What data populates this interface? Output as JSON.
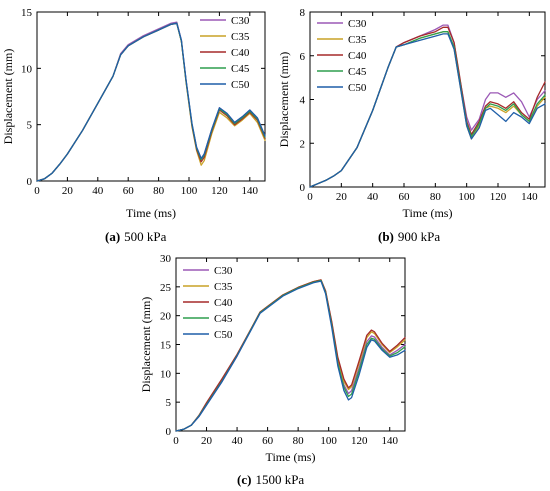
{
  "chart_data": [
    {
      "id": "a",
      "type": "line",
      "caption_tag": "(a)",
      "caption_text": "500 kPa",
      "xlabel": "Time (ms)",
      "ylabel": "Displacement (mm)",
      "xlim": [
        0,
        150
      ],
      "ylim": [
        0,
        15
      ],
      "xticks": [
        0,
        20,
        40,
        60,
        80,
        100,
        120,
        140
      ],
      "yticks": [
        0,
        5,
        10,
        15
      ],
      "legend": "top-right",
      "series": [
        {
          "name": "C30",
          "color": "#9b59b6",
          "x": [
            0,
            5,
            10,
            15,
            20,
            30,
            40,
            50,
            55,
            60,
            70,
            80,
            88,
            92,
            95,
            98,
            102,
            105,
            108,
            110,
            115,
            120,
            125,
            130,
            135,
            140,
            145,
            150
          ],
          "y": [
            0,
            0.2,
            0.7,
            1.5,
            2.4,
            4.5,
            6.9,
            9.3,
            11.3,
            12.1,
            12.9,
            13.5,
            14.0,
            14.1,
            12.5,
            9.0,
            5.0,
            3.0,
            2.0,
            2.4,
            4.6,
            6.5,
            6.0,
            5.2,
            5.7,
            6.3,
            5.6,
            4.0
          ]
        },
        {
          "name": "C35",
          "color": "#c9a227",
          "x": [
            0,
            5,
            10,
            15,
            20,
            30,
            40,
            50,
            55,
            60,
            70,
            80,
            88,
            92,
            95,
            98,
            102,
            105,
            108,
            110,
            115,
            120,
            125,
            130,
            135,
            140,
            145,
            150
          ],
          "y": [
            0,
            0.2,
            0.7,
            1.5,
            2.4,
            4.5,
            6.9,
            9.3,
            11.2,
            12.0,
            12.8,
            13.4,
            13.9,
            14.0,
            12.4,
            8.8,
            4.8,
            2.7,
            1.4,
            1.8,
            4.2,
            6.1,
            5.6,
            4.9,
            5.4,
            6.0,
            5.2,
            3.6
          ]
        },
        {
          "name": "C40",
          "color": "#a52a2a",
          "x": [
            0,
            5,
            10,
            15,
            20,
            30,
            40,
            50,
            55,
            60,
            70,
            80,
            88,
            92,
            95,
            98,
            102,
            105,
            108,
            110,
            115,
            120,
            125,
            130,
            135,
            140,
            145,
            150
          ],
          "y": [
            0,
            0.2,
            0.7,
            1.5,
            2.4,
            4.5,
            6.9,
            9.3,
            11.2,
            12.0,
            12.8,
            13.4,
            13.9,
            14.0,
            12.4,
            8.9,
            4.9,
            2.8,
            1.7,
            2.1,
            4.4,
            6.3,
            5.8,
            5.0,
            5.5,
            6.1,
            5.4,
            3.8
          ]
        },
        {
          "name": "C45",
          "color": "#2e9e4f",
          "x": [
            0,
            5,
            10,
            15,
            20,
            30,
            40,
            50,
            55,
            60,
            70,
            80,
            88,
            92,
            95,
            98,
            102,
            105,
            108,
            110,
            115,
            120,
            125,
            130,
            135,
            140,
            145,
            150
          ],
          "y": [
            0,
            0.2,
            0.7,
            1.5,
            2.4,
            4.5,
            6.9,
            9.3,
            11.2,
            12.0,
            12.8,
            13.4,
            13.9,
            14.0,
            12.4,
            8.9,
            5.0,
            2.9,
            1.9,
            2.3,
            4.5,
            6.4,
            5.9,
            5.1,
            5.6,
            6.2,
            5.5,
            3.9
          ]
        },
        {
          "name": "C50",
          "color": "#1f5fa8",
          "x": [
            0,
            5,
            10,
            15,
            20,
            30,
            40,
            50,
            55,
            60,
            70,
            80,
            88,
            92,
            95,
            98,
            102,
            105,
            108,
            110,
            115,
            120,
            125,
            130,
            135,
            140,
            145,
            150
          ],
          "y": [
            0,
            0.2,
            0.7,
            1.5,
            2.4,
            4.5,
            6.9,
            9.3,
            11.2,
            12.0,
            12.8,
            13.4,
            13.9,
            14.0,
            12.5,
            9.0,
            5.1,
            3.0,
            2.0,
            2.4,
            4.6,
            6.5,
            6.0,
            5.2,
            5.7,
            6.3,
            5.6,
            4.0
          ]
        }
      ]
    },
    {
      "id": "b",
      "type": "line",
      "caption_tag": "(b)",
      "caption_text": "900 kPa",
      "xlabel": "Time (ms)",
      "ylabel": "Displacement (mm)",
      "xlim": [
        0,
        150
      ],
      "ylim": [
        0,
        8
      ],
      "xticks": [
        0,
        20,
        40,
        60,
        80,
        100,
        120,
        140
      ],
      "yticks": [
        0,
        2,
        4,
        6,
        8
      ],
      "legend": "top-left",
      "series": [
        {
          "name": "C30",
          "color": "#9b59b6",
          "x": [
            0,
            5,
            10,
            15,
            20,
            30,
            40,
            50,
            55,
            60,
            70,
            80,
            85,
            88,
            92,
            95,
            100,
            103,
            108,
            112,
            115,
            120,
            125,
            130,
            135,
            140,
            145,
            150
          ],
          "y": [
            0,
            0.15,
            0.3,
            0.5,
            0.75,
            1.8,
            3.5,
            5.5,
            6.4,
            6.6,
            6.9,
            7.2,
            7.4,
            7.4,
            6.6,
            5.2,
            3.2,
            2.6,
            3.1,
            4.0,
            4.3,
            4.3,
            4.1,
            4.3,
            3.9,
            3.2,
            4.0,
            4.4
          ]
        },
        {
          "name": "C35",
          "color": "#c9a227",
          "x": [
            0,
            5,
            10,
            15,
            20,
            30,
            40,
            50,
            55,
            60,
            70,
            80,
            85,
            88,
            92,
            95,
            100,
            103,
            108,
            112,
            115,
            120,
            125,
            130,
            135,
            140,
            145,
            150
          ],
          "y": [
            0,
            0.15,
            0.3,
            0.5,
            0.75,
            1.8,
            3.5,
            5.5,
            6.4,
            6.5,
            6.8,
            7.0,
            7.1,
            7.1,
            6.3,
            5.0,
            2.8,
            2.2,
            2.8,
            3.6,
            3.7,
            3.6,
            3.4,
            3.7,
            3.3,
            3.0,
            3.7,
            4.1
          ]
        },
        {
          "name": "C40",
          "color": "#a52a2a",
          "x": [
            0,
            5,
            10,
            15,
            20,
            30,
            40,
            50,
            55,
            60,
            70,
            80,
            85,
            88,
            92,
            95,
            100,
            103,
            108,
            112,
            115,
            120,
            125,
            130,
            135,
            140,
            145,
            150
          ],
          "y": [
            0,
            0.15,
            0.3,
            0.5,
            0.75,
            1.8,
            3.5,
            5.5,
            6.4,
            6.6,
            6.9,
            7.1,
            7.3,
            7.3,
            6.6,
            5.3,
            3.0,
            2.4,
            3.0,
            3.7,
            3.9,
            3.8,
            3.6,
            3.9,
            3.4,
            3.1,
            4.1,
            4.8
          ]
        },
        {
          "name": "C45",
          "color": "#2e9e4f",
          "x": [
            0,
            5,
            10,
            15,
            20,
            30,
            40,
            50,
            55,
            60,
            70,
            80,
            85,
            88,
            92,
            95,
            100,
            103,
            108,
            112,
            115,
            120,
            125,
            130,
            135,
            140,
            145,
            150
          ],
          "y": [
            0,
            0.15,
            0.3,
            0.5,
            0.75,
            1.8,
            3.5,
            5.5,
            6.4,
            6.5,
            6.8,
            7.0,
            7.1,
            7.1,
            6.4,
            5.1,
            2.9,
            2.3,
            2.9,
            3.6,
            3.8,
            3.7,
            3.5,
            3.8,
            3.3,
            3.0,
            3.8,
            4.2
          ]
        },
        {
          "name": "C50",
          "color": "#1f5fa8",
          "x": [
            0,
            5,
            10,
            15,
            20,
            30,
            40,
            50,
            55,
            60,
            70,
            80,
            85,
            88,
            92,
            95,
            100,
            103,
            108,
            112,
            115,
            120,
            125,
            130,
            135,
            140,
            145,
            150
          ],
          "y": [
            0,
            0.15,
            0.3,
            0.5,
            0.75,
            1.8,
            3.5,
            5.5,
            6.4,
            6.5,
            6.7,
            6.9,
            7.0,
            7.0,
            6.3,
            5.0,
            2.8,
            2.2,
            2.7,
            3.5,
            3.6,
            3.3,
            3.0,
            3.4,
            3.2,
            2.9,
            3.6,
            3.8
          ]
        }
      ]
    },
    {
      "id": "c",
      "type": "line",
      "caption_tag": "(c)",
      "caption_text": "1500 kPa",
      "xlabel": "Time (ms)",
      "ylabel": "Displacement (mm)",
      "xlim": [
        0,
        150
      ],
      "ylim": [
        0,
        30
      ],
      "xticks": [
        0,
        20,
        40,
        60,
        80,
        100,
        120,
        140
      ],
      "yticks": [
        0,
        5,
        10,
        15,
        20,
        25,
        30
      ],
      "legend": "top-left",
      "series": [
        {
          "name": "C30",
          "color": "#9b59b6",
          "x": [
            0,
            5,
            10,
            15,
            20,
            30,
            40,
            50,
            55,
            60,
            70,
            80,
            90,
            95,
            98,
            102,
            106,
            110,
            113,
            115,
            120,
            125,
            128,
            130,
            135,
            140,
            145,
            150
          ],
          "y": [
            0,
            0.3,
            1.0,
            2.5,
            4.5,
            8.5,
            13.0,
            18.0,
            20.5,
            21.5,
            23.5,
            24.8,
            25.8,
            26.1,
            24.0,
            18.5,
            12.0,
            8.0,
            6.5,
            7.0,
            11.0,
            15.5,
            16.5,
            16.3,
            14.5,
            13.2,
            14.0,
            15.0
          ]
        },
        {
          "name": "C35",
          "color": "#c9a227",
          "x": [
            0,
            5,
            10,
            15,
            20,
            30,
            40,
            50,
            55,
            60,
            70,
            80,
            90,
            95,
            98,
            102,
            106,
            110,
            113,
            115,
            120,
            125,
            128,
            130,
            135,
            140,
            145,
            150
          ],
          "y": [
            0,
            0.3,
            1.0,
            2.6,
            4.7,
            8.8,
            13.2,
            18.1,
            20.6,
            21.6,
            23.6,
            24.9,
            25.9,
            26.2,
            24.2,
            18.8,
            12.5,
            8.6,
            7.2,
            7.7,
            11.8,
            16.2,
            17.2,
            16.9,
            15.0,
            13.6,
            14.6,
            15.8
          ]
        },
        {
          "name": "C40",
          "color": "#a52a2a",
          "x": [
            0,
            5,
            10,
            15,
            20,
            30,
            40,
            50,
            55,
            60,
            70,
            80,
            90,
            95,
            98,
            102,
            106,
            110,
            113,
            115,
            120,
            125,
            128,
            130,
            135,
            140,
            145,
            150
          ],
          "y": [
            0,
            0.3,
            1.0,
            2.7,
            4.9,
            9.0,
            13.3,
            18.1,
            20.6,
            21.6,
            23.6,
            24.9,
            25.9,
            26.2,
            24.3,
            19.0,
            12.8,
            9.0,
            7.5,
            8.0,
            12.2,
            16.6,
            17.5,
            17.2,
            15.2,
            13.8,
            14.9,
            16.2
          ]
        },
        {
          "name": "C45",
          "color": "#2e9e4f",
          "x": [
            0,
            5,
            10,
            15,
            20,
            30,
            40,
            50,
            55,
            60,
            70,
            80,
            90,
            95,
            98,
            102,
            106,
            110,
            113,
            115,
            120,
            125,
            128,
            130,
            135,
            140,
            145,
            150
          ],
          "y": [
            0,
            0.3,
            1.0,
            2.6,
            4.6,
            8.6,
            13.1,
            18.0,
            20.5,
            21.5,
            23.5,
            24.8,
            25.8,
            26.1,
            24.0,
            18.4,
            11.8,
            7.6,
            6.0,
            6.4,
            10.5,
            15.0,
            16.1,
            15.9,
            14.2,
            13.0,
            13.6,
            14.6
          ]
        },
        {
          "name": "C50",
          "color": "#1f5fa8",
          "x": [
            0,
            5,
            10,
            15,
            20,
            30,
            40,
            50,
            55,
            60,
            70,
            80,
            90,
            95,
            98,
            102,
            106,
            110,
            113,
            115,
            120,
            125,
            128,
            130,
            135,
            140,
            145,
            150
          ],
          "y": [
            0,
            0.3,
            1.0,
            2.5,
            4.5,
            8.5,
            13.0,
            17.9,
            20.4,
            21.4,
            23.4,
            24.7,
            25.7,
            26.0,
            23.8,
            18.0,
            11.3,
            7.0,
            5.4,
            5.8,
            9.8,
            14.5,
            15.8,
            15.6,
            14.0,
            12.8,
            13.2,
            14.0
          ]
        }
      ]
    }
  ]
}
